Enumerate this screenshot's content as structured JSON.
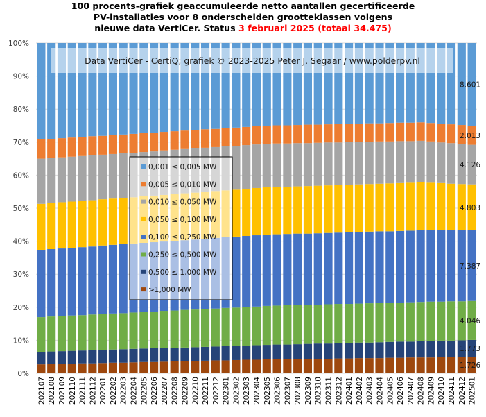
{
  "title": {
    "line1": "100 procents-grafiek geaccumuleerde netto aantallen gecertificeerde",
    "line2": "PV-installaties voor 8 onderscheiden grootteklassen volgens",
    "line3_black": "nieuwe data VertiCer. Status ",
    "line3_red": "3 februari 2025 (totaal 34.475)"
  },
  "banner": "Data VertiCer - CertiQ; grafiek © 2023-2025 Peter J. Segaar / www.polderpv.nl",
  "chart_data": {
    "type": "bar",
    "stacked": "100-percent",
    "title": "100 procents-grafiek geaccumuleerde netto aantallen gecertificeerde PV-installaties voor 8 onderscheiden grootteklassen volgens nieuwe data VertiCer. Status 3 februari 2025 (totaal 34.475)",
    "xlabel": "",
    "ylabel": "",
    "ylim": [
      0,
      100
    ],
    "yticks": [
      "0%",
      "10%",
      "20%",
      "30%",
      "40%",
      "50%",
      "60%",
      "70%",
      "80%",
      "90%",
      "100%"
    ],
    "grid": true,
    "legend_position": "center-left",
    "categories": [
      "202107",
      "202108",
      "202109",
      "202110",
      "202111",
      "202112",
      "202201",
      "202202",
      "202203",
      "202204",
      "202205",
      "202206",
      "202207",
      "202208",
      "202209",
      "202210",
      "202211",
      "202212",
      "202301",
      "202302",
      "202303",
      "202304",
      "202305",
      "202306",
      "202307",
      "202308",
      "202309",
      "202310",
      "202311",
      "202312",
      "202401",
      "202402",
      "202403",
      "202404",
      "202405",
      "202406",
      "202407",
      "202408",
      "202409",
      "202410",
      "202411",
      "202412",
      "202501"
    ],
    "series": [
      {
        "name": ">1,000 MW",
        "color": "#9e480e",
        "last_label": "1.726",
        "values": [
          2.7,
          2.8,
          2.8,
          2.9,
          3.0,
          3.0,
          3.1,
          3.2,
          3.2,
          3.3,
          3.4,
          3.4,
          3.5,
          3.6,
          3.7,
          3.7,
          3.8,
          3.9,
          3.9,
          4.0,
          4.1,
          4.1,
          4.2,
          4.2,
          4.3,
          4.3,
          4.4,
          4.4,
          4.4,
          4.5,
          4.5,
          4.6,
          4.6,
          4.6,
          4.7,
          4.7,
          4.8,
          4.8,
          4.8,
          4.9,
          4.9,
          5.0,
          5.0
        ]
      },
      {
        "name": "0,500 ≤  1,000 MW",
        "color": "#264478",
        "last_label": "1.773",
        "values": [
          3.8,
          3.8,
          3.9,
          3.9,
          3.9,
          4.0,
          4.0,
          4.0,
          4.1,
          4.1,
          4.1,
          4.2,
          4.1,
          4.1,
          4.1,
          4.2,
          4.2,
          4.2,
          4.3,
          4.3,
          4.3,
          4.4,
          4.4,
          4.5,
          4.4,
          4.5,
          4.5,
          4.6,
          4.6,
          4.6,
          4.7,
          4.7,
          4.7,
          4.8,
          4.8,
          4.9,
          4.8,
          4.9,
          5.0,
          5.0,
          5.0,
          5.0,
          5.1
        ]
      },
      {
        "name": "0,250 ≤  0,500 MW",
        "color": "#70ad47",
        "last_label": "4.046",
        "values": [
          10.5,
          10.6,
          10.6,
          10.7,
          10.7,
          10.8,
          10.8,
          10.9,
          10.9,
          11.0,
          11.0,
          11.1,
          11.3,
          11.3,
          11.4,
          11.4,
          11.5,
          11.5,
          11.6,
          11.6,
          11.7,
          11.7,
          11.8,
          11.8,
          11.9,
          11.8,
          11.8,
          11.8,
          11.9,
          11.9,
          11.8,
          11.8,
          11.9,
          11.9,
          11.9,
          11.8,
          11.9,
          11.9,
          11.9,
          11.8,
          11.9,
          11.8,
          11.8
        ]
      },
      {
        "name": "0,100 ≤  0,250 MW",
        "color": "#4472c4",
        "last_label": "7.387",
        "values": [
          20.4,
          20.4,
          20.5,
          20.5,
          20.6,
          20.6,
          20.8,
          20.8,
          20.9,
          20.9,
          21.0,
          21.0,
          21.0,
          21.1,
          21.1,
          21.2,
          21.2,
          21.4,
          21.4,
          21.5,
          21.5,
          21.6,
          21.6,
          21.6,
          21.6,
          21.7,
          21.6,
          21.6,
          21.6,
          21.6,
          21.7,
          21.7,
          21.7,
          21.7,
          21.6,
          21.7,
          21.7,
          21.7,
          21.6,
          21.6,
          21.5,
          21.5,
          21.4
        ]
      },
      {
        "name": "0,050 ≤  0,100 MW",
        "color": "#ffc000",
        "last_label": "4.803",
        "values": [
          13.9,
          13.9,
          14.0,
          14.0,
          14.0,
          14.0,
          14.0,
          14.0,
          14.0,
          14.0,
          14.1,
          14.1,
          14.1,
          14.1,
          14.2,
          14.2,
          14.2,
          14.2,
          14.2,
          14.2,
          14.2,
          14.3,
          14.3,
          14.3,
          14.3,
          14.3,
          14.4,
          14.4,
          14.4,
          14.4,
          14.4,
          14.4,
          14.4,
          14.4,
          14.5,
          14.5,
          14.5,
          14.5,
          14.4,
          14.3,
          14.1,
          14.0,
          13.9
        ]
      },
      {
        "name": "0,010 ≤  0,050 MW",
        "color": "#a5a5a5",
        "last_label": "4.126",
        "values": [
          13.7,
          13.7,
          13.6,
          13.6,
          13.6,
          13.6,
          13.5,
          13.5,
          13.5,
          13.5,
          13.4,
          13.4,
          13.5,
          13.5,
          13.4,
          13.4,
          13.4,
          13.3,
          13.3,
          13.3,
          13.3,
          13.2,
          13.2,
          13.2,
          13.1,
          13.1,
          13.0,
          13.0,
          13.0,
          12.9,
          12.9,
          12.8,
          12.8,
          12.8,
          12.7,
          12.7,
          12.6,
          12.6,
          12.5,
          12.3,
          12.3,
          12.1,
          12.0
        ]
      },
      {
        "name": "0,005 ≤  0,010 MW",
        "color": "#ed7d31",
        "last_label": "2.013",
        "values": [
          5.8,
          5.8,
          5.8,
          5.8,
          5.8,
          5.8,
          5.7,
          5.7,
          5.7,
          5.7,
          5.7,
          5.7,
          5.6,
          5.6,
          5.6,
          5.6,
          5.6,
          5.5,
          5.5,
          5.5,
          5.5,
          5.5,
          5.5,
          5.5,
          5.5,
          5.5,
          5.6,
          5.5,
          5.5,
          5.6,
          5.5,
          5.6,
          5.6,
          5.5,
          5.6,
          5.6,
          5.6,
          5.6,
          5.6,
          5.7,
          5.7,
          5.8,
          5.8
        ]
      },
      {
        "name": "0,001 ≤  0,005 MW",
        "color": "#5b9bd5",
        "last_label": "8.601",
        "values": [
          29.2,
          29.0,
          28.8,
          28.6,
          28.4,
          28.2,
          28.1,
          27.9,
          27.7,
          27.5,
          27.3,
          27.1,
          26.9,
          26.7,
          26.5,
          26.3,
          26.1,
          26.0,
          25.8,
          25.6,
          25.4,
          25.2,
          25.0,
          24.9,
          24.9,
          24.8,
          24.7,
          24.7,
          24.6,
          24.5,
          24.5,
          24.4,
          24.3,
          24.3,
          24.2,
          24.1,
          24.1,
          24.0,
          24.2,
          24.4,
          24.6,
          24.8,
          25.0
        ]
      }
    ],
    "legend_order": [
      "0,001 ≤  0,005 MW",
      "0,005 ≤  0,010 MW",
      "0,010 ≤  0,050 MW",
      "0,050 ≤  0,100 MW",
      "0,100 ≤  0,250 MW",
      "0,250 ≤  0,500 MW",
      "0,500 ≤  1,000 MW",
      ">1,000 MW"
    ]
  }
}
